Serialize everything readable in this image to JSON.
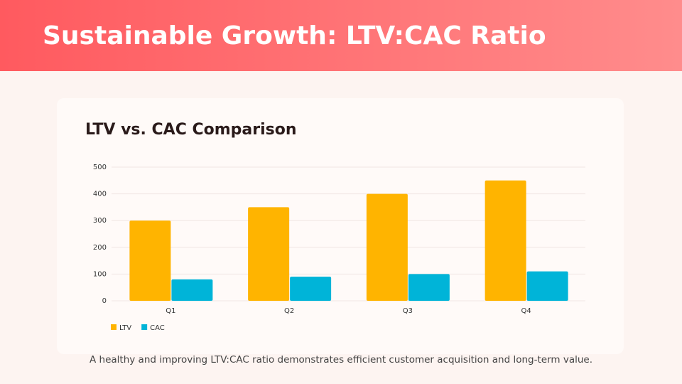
{
  "header": {
    "title": "Sustainable Growth: LTV:CAC Ratio"
  },
  "chart_data": {
    "type": "bar",
    "title": "LTV vs. CAC Comparison",
    "categories": [
      "Q1",
      "Q2",
      "Q3",
      "Q4"
    ],
    "series": [
      {
        "name": "LTV",
        "color": "#ffb400",
        "values": [
          300,
          350,
          400,
          450
        ]
      },
      {
        "name": "CAC",
        "color": "#00b4d8",
        "values": [
          80,
          90,
          100,
          110
        ]
      }
    ],
    "ylim": [
      0,
      500
    ],
    "yticks": [
      0,
      100,
      200,
      300,
      400,
      500
    ],
    "grid": true,
    "legend": "bottom-left"
  },
  "footer": {
    "caption": "A healthy and improving LTV:CAC ratio demonstrates efficient customer acquisition and long-term value."
  }
}
